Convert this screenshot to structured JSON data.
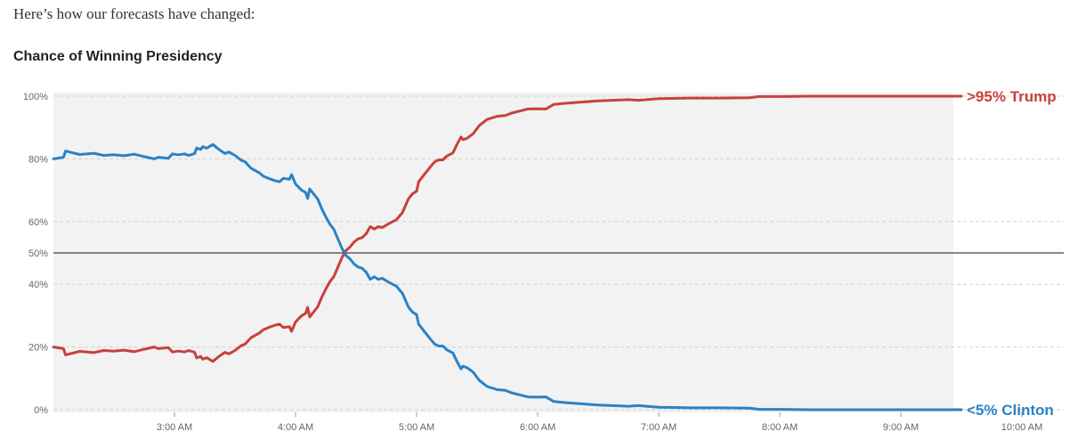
{
  "intro_text": "Here’s how our forecasts have changed:",
  "chart_data": {
    "type": "line",
    "title": "Chance of Winning Presidency",
    "xlabel": "",
    "ylabel": "",
    "x_ticks": [
      "3:00 AM",
      "4:00 AM",
      "5:00 AM",
      "6:00 AM",
      "7:00 AM",
      "8:00 AM",
      "9:00 AM",
      "10:00 AM"
    ],
    "y_ticks": [
      "0%",
      "20%",
      "40%",
      "50%",
      "60%",
      "80%",
      "100%"
    ],
    "xlim": [
      "2:00 AM",
      "10:00 AM"
    ],
    "ylim": [
      0,
      100
    ],
    "reference_line": 50,
    "grid": "dashed horizontal",
    "series": [
      {
        "name": "Trump",
        "end_label": ">95% Trump",
        "color": "#c8403d",
        "points": [
          [
            "2:00 AM",
            20
          ],
          [
            "2:05 AM",
            19.5
          ],
          [
            "2:06 AM",
            17.5
          ],
          [
            "2:13 AM",
            18.6
          ],
          [
            "2:20 AM",
            18.2
          ],
          [
            "2:25 AM",
            18.9
          ],
          [
            "2:30 AM",
            18.7
          ],
          [
            "2:35 AM",
            19
          ],
          [
            "2:40 AM",
            18.5
          ],
          [
            "2:45 AM",
            19.3
          ],
          [
            "2:50 AM",
            20
          ],
          [
            "2:52 AM",
            19.5
          ],
          [
            "2:57 AM",
            19.8
          ],
          [
            "2:59 AM",
            18.4
          ],
          [
            "3:02 AM",
            18.7
          ],
          [
            "3:05 AM",
            18.4
          ],
          [
            "3:07 AM",
            18.9
          ],
          [
            "3:10 AM",
            18.3
          ],
          [
            "3:11 AM",
            16.5
          ],
          [
            "3:13 AM",
            17
          ],
          [
            "3:14 AM",
            16.1
          ],
          [
            "3:16 AM",
            16.6
          ],
          [
            "3:19 AM",
            15.4
          ],
          [
            "3:22 AM",
            17
          ],
          [
            "3:25 AM",
            18.3
          ],
          [
            "3:27 AM",
            17.8
          ],
          [
            "3:30 AM",
            18.9
          ],
          [
            "3:33 AM",
            20.4
          ],
          [
            "3:35 AM",
            20.9
          ],
          [
            "3:38 AM",
            23
          ],
          [
            "3:42 AM",
            24.4
          ],
          [
            "3:44 AM",
            25.5
          ],
          [
            "3:47 AM",
            26.3
          ],
          [
            "3:50 AM",
            27
          ],
          [
            "3:52 AM",
            27.3
          ],
          [
            "3:54 AM",
            26.2
          ],
          [
            "3:57 AM",
            26.5
          ],
          [
            "3:58 AM",
            25
          ],
          [
            "4:00 AM",
            28
          ],
          [
            "4:03 AM",
            30
          ],
          [
            "4:05 AM",
            30.7
          ],
          [
            "4:06 AM",
            32.6
          ],
          [
            "4:07 AM",
            29.6
          ],
          [
            "4:09 AM",
            31.2
          ],
          [
            "4:11 AM",
            32.8
          ],
          [
            "4:13 AM",
            35.9
          ],
          [
            "4:15 AM",
            38.5
          ],
          [
            "4:17 AM",
            40.8
          ],
          [
            "4:19 AM",
            42.5
          ],
          [
            "4:21 AM",
            45.5
          ],
          [
            "4:23 AM",
            48.5
          ],
          [
            "4:25 AM",
            50.8
          ],
          [
            "4:27 AM",
            51.9
          ],
          [
            "4:29 AM",
            53.5
          ],
          [
            "4:31 AM",
            54.5
          ],
          [
            "4:33 AM",
            54.9
          ],
          [
            "4:35 AM",
            56.1
          ],
          [
            "4:37 AM",
            58.4
          ],
          [
            "4:39 AM",
            57.6
          ],
          [
            "4:41 AM",
            58.4
          ],
          [
            "4:43 AM",
            58.1
          ],
          [
            "4:46 AM",
            59.3
          ],
          [
            "4:50 AM",
            60.6
          ],
          [
            "4:53 AM",
            62.9
          ],
          [
            "4:56 AM",
            67.3
          ],
          [
            "4:58 AM",
            68.9
          ],
          [
            "5:00 AM",
            69.7
          ],
          [
            "5:01 AM",
            72.7
          ],
          [
            "5:04 AM",
            75.2
          ],
          [
            "5:07 AM",
            77.6
          ],
          [
            "5:09 AM",
            79.1
          ],
          [
            "5:11 AM",
            79.7
          ],
          [
            "5:13 AM",
            79.7
          ],
          [
            "5:15 AM",
            80.9
          ],
          [
            "5:18 AM",
            81.9
          ],
          [
            "5:20 AM",
            84.6
          ],
          [
            "5:22 AM",
            87
          ],
          [
            "5:23 AM",
            86.1
          ],
          [
            "5:25 AM",
            86.6
          ],
          [
            "5:28 AM",
            88
          ],
          [
            "5:31 AM",
            90.6
          ],
          [
            "5:35 AM",
            92.6
          ],
          [
            "5:40 AM",
            93.6
          ],
          [
            "5:44 AM",
            93.8
          ],
          [
            "5:47 AM",
            94.6
          ],
          [
            "5:52 AM",
            95.4
          ],
          [
            "5:55 AM",
            95.9
          ],
          [
            "6:00 AM",
            96
          ],
          [
            "6:04 AM",
            95.9
          ],
          [
            "6:08 AM",
            97.4
          ],
          [
            "6:15 AM",
            97.8
          ],
          [
            "6:30 AM",
            98.5
          ],
          [
            "6:45 AM",
            98.9
          ],
          [
            "6:50 AM",
            98.7
          ],
          [
            "7:00 AM",
            99.2
          ],
          [
            "7:15 AM",
            99.4
          ],
          [
            "7:30 AM",
            99.4
          ],
          [
            "7:45 AM",
            99.5
          ],
          [
            "7:50 AM",
            99.9
          ],
          [
            "8:00 AM",
            99.9
          ],
          [
            "8:15 AM",
            100
          ],
          [
            "9:00 AM",
            100
          ],
          [
            "9:30 AM",
            100
          ]
        ]
      },
      {
        "name": "Clinton",
        "end_label": "<5% Clinton",
        "color": "#2a82c6",
        "points": [
          [
            "2:00 AM",
            80
          ],
          [
            "2:05 AM",
            80.5
          ],
          [
            "2:06 AM",
            82.5
          ],
          [
            "2:13 AM",
            81.4
          ],
          [
            "2:20 AM",
            81.8
          ],
          [
            "2:25 AM",
            81.1
          ],
          [
            "2:30 AM",
            81.3
          ],
          [
            "2:35 AM",
            81
          ],
          [
            "2:40 AM",
            81.5
          ],
          [
            "2:45 AM",
            80.7
          ],
          [
            "2:50 AM",
            80
          ],
          [
            "2:52 AM",
            80.5
          ],
          [
            "2:57 AM",
            80.2
          ],
          [
            "2:59 AM",
            81.6
          ],
          [
            "3:02 AM",
            81.3
          ],
          [
            "3:05 AM",
            81.6
          ],
          [
            "3:07 AM",
            81.1
          ],
          [
            "3:10 AM",
            81.7
          ],
          [
            "3:11 AM",
            83.5
          ],
          [
            "3:13 AM",
            83
          ],
          [
            "3:14 AM",
            83.9
          ],
          [
            "3:16 AM",
            83.4
          ],
          [
            "3:19 AM",
            84.6
          ],
          [
            "3:22 AM",
            83
          ],
          [
            "3:25 AM",
            81.7
          ],
          [
            "3:27 AM",
            82.2
          ],
          [
            "3:30 AM",
            81.1
          ],
          [
            "3:33 AM",
            79.6
          ],
          [
            "3:35 AM",
            79.1
          ],
          [
            "3:38 AM",
            77
          ],
          [
            "3:42 AM",
            75.6
          ],
          [
            "3:44 AM",
            74.5
          ],
          [
            "3:47 AM",
            73.7
          ],
          [
            "3:50 AM",
            73
          ],
          [
            "3:52 AM",
            72.7
          ],
          [
            "3:54 AM",
            73.8
          ],
          [
            "3:57 AM",
            73.5
          ],
          [
            "3:58 AM",
            75
          ],
          [
            "4:00 AM",
            72
          ],
          [
            "4:03 AM",
            70
          ],
          [
            "4:05 AM",
            69.3
          ],
          [
            "4:06 AM",
            67.4
          ],
          [
            "4:07 AM",
            70.4
          ],
          [
            "4:09 AM",
            68.8
          ],
          [
            "4:11 AM",
            67.2
          ],
          [
            "4:13 AM",
            64.1
          ],
          [
            "4:15 AM",
            61.5
          ],
          [
            "4:17 AM",
            59.2
          ],
          [
            "4:19 AM",
            57.5
          ],
          [
            "4:21 AM",
            54.5
          ],
          [
            "4:23 AM",
            51.5
          ],
          [
            "4:25 AM",
            49.2
          ],
          [
            "4:27 AM",
            48.1
          ],
          [
            "4:29 AM",
            46.5
          ],
          [
            "4:31 AM",
            45.5
          ],
          [
            "4:33 AM",
            45.1
          ],
          [
            "4:35 AM",
            43.9
          ],
          [
            "4:37 AM",
            41.6
          ],
          [
            "4:39 AM",
            42.4
          ],
          [
            "4:41 AM",
            41.6
          ],
          [
            "4:43 AM",
            41.9
          ],
          [
            "4:46 AM",
            40.7
          ],
          [
            "4:50 AM",
            39.4
          ],
          [
            "4:53 AM",
            37.1
          ],
          [
            "4:56 AM",
            32.7
          ],
          [
            "4:58 AM",
            31.1
          ],
          [
            "5:00 AM",
            30.3
          ],
          [
            "5:01 AM",
            27.3
          ],
          [
            "5:04 AM",
            24.8
          ],
          [
            "5:07 AM",
            22.4
          ],
          [
            "5:09 AM",
            20.9
          ],
          [
            "5:11 AM",
            20.3
          ],
          [
            "5:13 AM",
            20.3
          ],
          [
            "5:15 AM",
            19.1
          ],
          [
            "5:18 AM",
            18.1
          ],
          [
            "5:20 AM",
            15.4
          ],
          [
            "5:22 AM",
            13
          ],
          [
            "5:23 AM",
            13.9
          ],
          [
            "5:25 AM",
            13.4
          ],
          [
            "5:28 AM",
            12
          ],
          [
            "5:31 AM",
            9.4
          ],
          [
            "5:35 AM",
            7.4
          ],
          [
            "5:40 AM",
            6.4
          ],
          [
            "5:44 AM",
            6.2
          ],
          [
            "5:47 AM",
            5.4
          ],
          [
            "5:52 AM",
            4.6
          ],
          [
            "5:55 AM",
            4.1
          ],
          [
            "6:00 AM",
            4
          ],
          [
            "6:04 AM",
            4.1
          ],
          [
            "6:08 AM",
            2.6
          ],
          [
            "6:15 AM",
            2.2
          ],
          [
            "6:30 AM",
            1.5
          ],
          [
            "6:45 AM",
            1.1
          ],
          [
            "6:50 AM",
            1.3
          ],
          [
            "7:00 AM",
            0.8
          ],
          [
            "7:15 AM",
            0.6
          ],
          [
            "7:30 AM",
            0.6
          ],
          [
            "7:45 AM",
            0.5
          ],
          [
            "7:50 AM",
            0.1
          ],
          [
            "8:00 AM",
            0.1
          ],
          [
            "8:15 AM",
            0
          ],
          [
            "9:00 AM",
            0
          ],
          [
            "9:30 AM",
            0
          ]
        ]
      }
    ]
  }
}
